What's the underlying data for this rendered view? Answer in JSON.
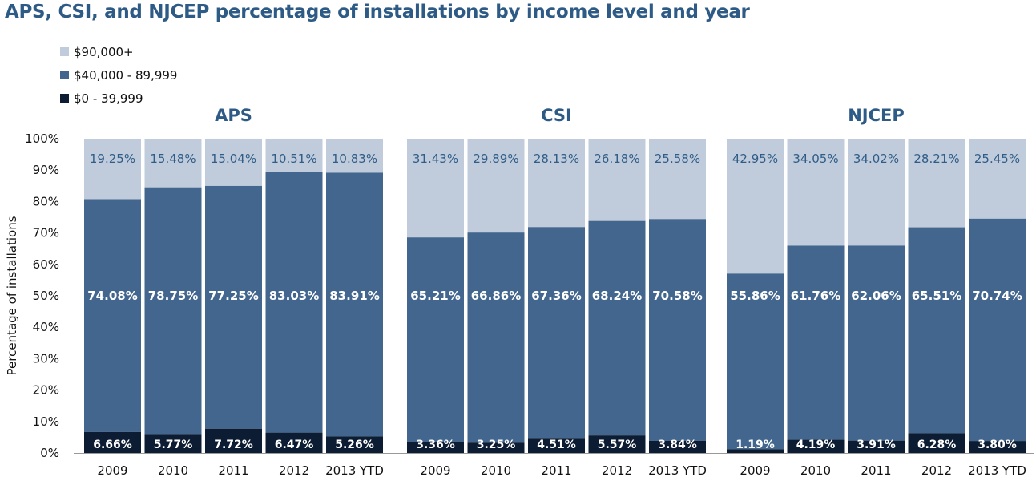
{
  "colors": {
    "high": "#c0ccdb",
    "mid": "#42668d",
    "low": "#0c1c33",
    "title": "#2d5b86",
    "panel_title": "#2d5b86",
    "high_label": "#2f5d88",
    "label_light": "#ffffff"
  },
  "chart_data": {
    "type": "bar",
    "stacked": true,
    "title": "APS, CSI, and NJCEP percentage of installations by income level and year",
    "ylabel": "Percentage of installations",
    "ylim": [
      0,
      100
    ],
    "yticks": [
      "0%",
      "10%",
      "20%",
      "30%",
      "40%",
      "50%",
      "60%",
      "70%",
      "80%",
      "90%",
      "100%"
    ],
    "legend": [
      {
        "key": "high",
        "name": "$90,000+"
      },
      {
        "key": "mid",
        "name": "$40,000 - 89,999"
      },
      {
        "key": "low",
        "name": "$0 - 39,999"
      }
    ],
    "panels": [
      {
        "name": "APS",
        "categories": [
          "2009",
          "2010",
          "2011",
          "2012",
          "2013 YTD"
        ],
        "low": [
          6.66,
          5.77,
          7.72,
          6.47,
          5.26
        ],
        "mid": [
          74.08,
          78.75,
          77.25,
          83.03,
          83.91
        ],
        "high": [
          19.25,
          15.48,
          15.04,
          10.51,
          10.83
        ]
      },
      {
        "name": "CSI",
        "categories": [
          "2009",
          "2010",
          "2011",
          "2012",
          "2013 YTD"
        ],
        "low": [
          3.36,
          3.25,
          4.51,
          5.57,
          3.84
        ],
        "mid": [
          65.21,
          66.86,
          67.36,
          68.24,
          70.58
        ],
        "high": [
          31.43,
          29.89,
          28.13,
          26.18,
          25.58
        ]
      },
      {
        "name": "NJCEP",
        "categories": [
          "2009",
          "2010",
          "2011",
          "2012",
          "2013 YTD"
        ],
        "low": [
          1.19,
          4.19,
          3.91,
          6.28,
          3.8
        ],
        "mid": [
          55.86,
          61.76,
          62.06,
          65.51,
          70.74
        ],
        "high": [
          42.95,
          34.05,
          34.02,
          28.21,
          25.45
        ]
      }
    ]
  }
}
